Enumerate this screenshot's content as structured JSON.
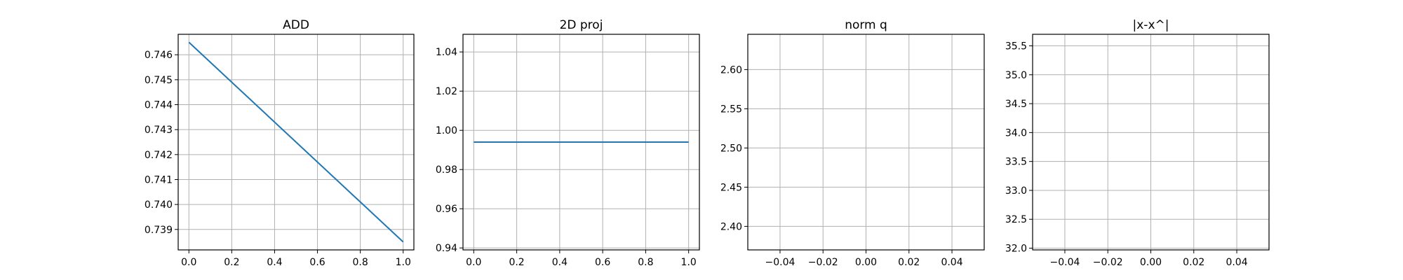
{
  "chart_data": [
    {
      "type": "line",
      "title": "ADD",
      "xlabel": "",
      "ylabel": "",
      "grid": true,
      "xlim": [
        -0.05,
        1.05
      ],
      "ylim": [
        0.73818,
        0.74682
      ],
      "xticks": [
        0.0,
        0.2,
        0.4,
        0.6,
        0.8,
        1.0
      ],
      "xtick_labels": [
        "0.0",
        "0.2",
        "0.4",
        "0.6",
        "0.8",
        "1.0"
      ],
      "yticks": [
        0.739,
        0.74,
        0.741,
        0.742,
        0.743,
        0.744,
        0.745,
        0.746
      ],
      "ytick_labels": [
        "0.739",
        "0.740",
        "0.741",
        "0.742",
        "0.743",
        "0.744",
        "0.745",
        "0.746"
      ],
      "series": [
        {
          "color": "#1f77b4",
          "x": [
            0,
            1
          ],
          "y": [
            0.7465,
            0.7385
          ]
        }
      ]
    },
    {
      "type": "line",
      "title": "2D proj",
      "xlabel": "",
      "ylabel": "",
      "grid": true,
      "xlim": [
        -0.05,
        1.05
      ],
      "ylim": [
        0.939,
        1.049
      ],
      "xticks": [
        0.0,
        0.2,
        0.4,
        0.6,
        0.8,
        1.0
      ],
      "xtick_labels": [
        "0.0",
        "0.2",
        "0.4",
        "0.6",
        "0.8",
        "1.0"
      ],
      "yticks": [
        0.94,
        0.96,
        0.98,
        1.0,
        1.02,
        1.04
      ],
      "ytick_labels": [
        "0.94",
        "0.96",
        "0.98",
        "1.00",
        "1.02",
        "1.04"
      ],
      "series": [
        {
          "color": "#1f77b4",
          "x": [
            0,
            1
          ],
          "y": [
            0.994,
            0.994
          ]
        }
      ]
    },
    {
      "type": "line",
      "title": "norm q",
      "xlabel": "",
      "ylabel": "",
      "grid": true,
      "xlim": [
        -0.055,
        0.055
      ],
      "ylim": [
        2.37,
        2.645
      ],
      "xticks": [
        -0.04,
        -0.02,
        0.0,
        0.02,
        0.04
      ],
      "xtick_labels": [
        "−0.04",
        "−0.02",
        "0.00",
        "0.02",
        "0.04"
      ],
      "yticks": [
        2.4,
        2.45,
        2.5,
        2.55,
        2.6
      ],
      "ytick_labels": [
        "2.40",
        "2.45",
        "2.50",
        "2.55",
        "2.60"
      ],
      "series": []
    },
    {
      "type": "line",
      "title": "|x-x^|",
      "xlabel": "",
      "ylabel": "",
      "grid": true,
      "xlim": [
        -0.055,
        0.055
      ],
      "ylim": [
        31.97,
        35.7
      ],
      "xticks": [
        -0.04,
        -0.02,
        0.0,
        0.02,
        0.04
      ],
      "xtick_labels": [
        "−0.04",
        "−0.02",
        "0.00",
        "0.02",
        "0.04"
      ],
      "yticks": [
        32.0,
        32.5,
        33.0,
        33.5,
        34.0,
        34.5,
        35.0,
        35.5
      ],
      "ytick_labels": [
        "32.0",
        "32.5",
        "33.0",
        "33.5",
        "34.0",
        "34.5",
        "35.0",
        "35.5"
      ],
      "series": []
    }
  ]
}
